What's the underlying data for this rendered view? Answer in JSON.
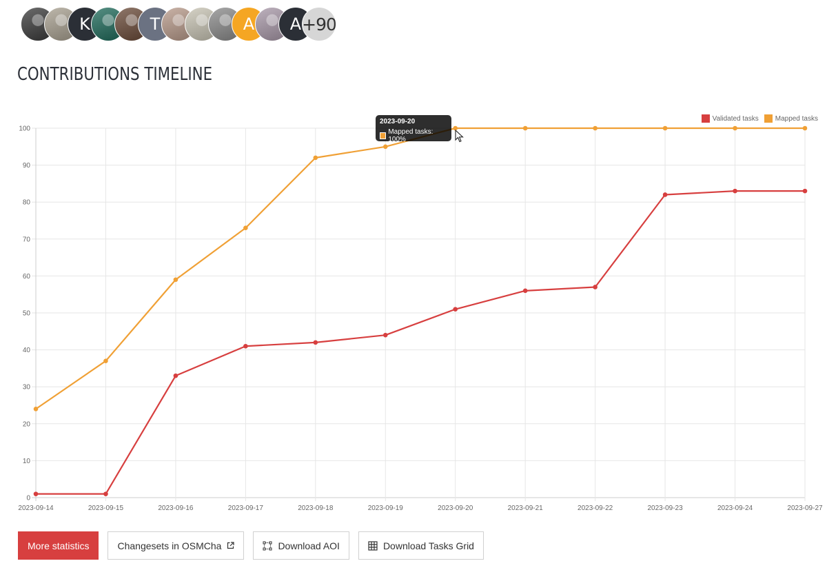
{
  "contributors": {
    "avatars": [
      {
        "kind": "photo",
        "color": "#3a3a3a",
        "text": ""
      },
      {
        "kind": "photo",
        "color": "#a8a090",
        "text": ""
      },
      {
        "kind": "letter",
        "color": "#2b2f36",
        "text": "K"
      },
      {
        "kind": "photo",
        "color": "#1e6a5a",
        "text": ""
      },
      {
        "kind": "photo",
        "color": "#6a4a38",
        "text": ""
      },
      {
        "kind": "letter",
        "color": "#6b7282",
        "text": "T"
      },
      {
        "kind": "photo",
        "color": "#b89a8a",
        "text": ""
      },
      {
        "kind": "photo",
        "color": "#c8c4b4",
        "text": ""
      },
      {
        "kind": "photo",
        "color": "#8a8a8a",
        "text": ""
      },
      {
        "kind": "letter",
        "color": "#f5a623",
        "text": "A"
      },
      {
        "kind": "photo",
        "color": "#a898a8",
        "text": ""
      },
      {
        "kind": "letter",
        "color": "#2b2f36",
        "text": "A"
      }
    ],
    "more_label": "+90"
  },
  "section_title": "CONTRIBUTIONS TIMELINE",
  "colors": {
    "validated": "#d73f3f",
    "mapped": "#f0a035"
  },
  "chart_data": {
    "type": "line",
    "x": [
      "2023-09-14",
      "2023-09-15",
      "2023-09-16",
      "2023-09-17",
      "2023-09-18",
      "2023-09-19",
      "2023-09-20",
      "2023-09-21",
      "2023-09-22",
      "2023-09-23",
      "2023-09-24",
      "2023-09-27"
    ],
    "series": [
      {
        "name": "Validated tasks",
        "color": "#d73f3f",
        "values": [
          1,
          1,
          33,
          41,
          42,
          44,
          51,
          56,
          57,
          82,
          83,
          83
        ]
      },
      {
        "name": "Mapped tasks",
        "color": "#f0a035",
        "values": [
          24,
          37,
          59,
          73,
          92,
          95,
          100,
          100,
          100,
          100,
          100,
          100
        ]
      }
    ],
    "ylim": [
      0,
      100
    ],
    "yticks": [
      0,
      10,
      20,
      30,
      40,
      50,
      60,
      70,
      80,
      90,
      100
    ],
    "grid": true,
    "legend_position": "top-right",
    "title": "",
    "xlabel": "",
    "ylabel": ""
  },
  "tooltip": {
    "title": "2023-09-20",
    "label": "Mapped tasks: 100%"
  },
  "buttons": {
    "more_statistics": "More statistics",
    "changesets": "Changesets in OSMCha",
    "download_aoi": "Download AOI",
    "download_grid": "Download Tasks Grid"
  }
}
